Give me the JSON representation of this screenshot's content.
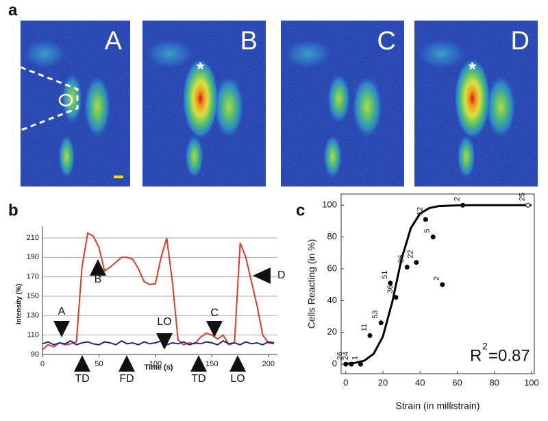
{
  "figure_a": {
    "panel_label": "a",
    "frames": [
      "A",
      "B",
      "C",
      "D"
    ],
    "marker": "*"
  },
  "chart_data": [
    {
      "type": "line",
      "panel_label": "b",
      "ylabel": "Intensity (%)",
      "xlabel": "Time (s)",
      "x": [
        0,
        5,
        10,
        15,
        20,
        25,
        30,
        35,
        40,
        45,
        50,
        55,
        60,
        65,
        70,
        75,
        80,
        85,
        90,
        95,
        100,
        105,
        110,
        115,
        120,
        125,
        130,
        135,
        140,
        145,
        150,
        155,
        160,
        165,
        170,
        175,
        180,
        185,
        190,
        195,
        200,
        205
      ],
      "series": [
        {
          "color": "#e23a22",
          "values": [
            95,
            100,
            98,
            102,
            100,
            101,
            103,
            180,
            215,
            212,
            200,
            176,
            180,
            185,
            190,
            190,
            188,
            178,
            165,
            162,
            163,
            190,
            210,
            165,
            105,
            100,
            102,
            101,
            108,
            112,
            110,
            106,
            110,
            100,
            102,
            205,
            190,
            165,
            140,
            110,
            102,
            101
          ]
        },
        {
          "color": "#23238a",
          "values": [
            101,
            103,
            100,
            102,
            101,
            104,
            100,
            102,
            103,
            101,
            100,
            103,
            102,
            100,
            104,
            101,
            102,
            100,
            103,
            101,
            102,
            104,
            100,
            102,
            101,
            103,
            100,
            102,
            101,
            103,
            102,
            100,
            104,
            101,
            102,
            100,
            103,
            101,
            102,
            100,
            103,
            102
          ]
        }
      ],
      "xlim": [
        0,
        208
      ],
      "ylim": [
        90,
        222
      ],
      "xticks": [
        0,
        50,
        100,
        150,
        200
      ],
      "yticks": [
        90,
        110,
        130,
        150,
        170,
        190,
        210
      ],
      "grid": true,
      "annotations": [
        "A",
        "B",
        "C",
        "D",
        "LO",
        "TD",
        "FD",
        "TD",
        "LO"
      ]
    },
    {
      "type": "scatter",
      "panel_label": "c",
      "ylabel": "Cells Reacting (in %)",
      "xlabel": "Strain (in millistrain)",
      "x": [
        0,
        3,
        8,
        13,
        19,
        24,
        27,
        33,
        38,
        43,
        47,
        52,
        63,
        98
      ],
      "values": [
        0,
        0,
        0,
        18,
        26,
        51,
        42,
        61,
        64,
        91,
        80,
        50,
        100,
        100
      ],
      "point_labels": [
        "26",
        "24",
        "1",
        "11",
        "53",
        "51",
        "36",
        "36",
        "22",
        "12",
        "5",
        "2",
        "2",
        "25"
      ],
      "point_style": [
        "filled",
        "filled",
        "filled",
        "filled",
        "filled",
        "filled",
        "filled",
        "filled",
        "filled",
        "filled",
        "filled",
        "filled",
        "filled",
        "open"
      ],
      "fit_x": [
        0,
        5,
        10,
        15,
        20,
        25,
        30,
        35,
        40,
        45,
        50,
        60,
        70,
        80,
        90,
        100
      ],
      "fit_values": [
        0.3,
        0.8,
        2.2,
        6.5,
        17.4,
        39,
        66,
        85.5,
        94.7,
        98.2,
        99.4,
        99.9,
        100,
        100,
        100,
        100
      ],
      "color": "#000000",
      "xlim": [
        -2.5,
        101.5
      ],
      "ylim": [
        -6,
        107
      ],
      "xticks": [
        0,
        20,
        40,
        60,
        80,
        100
      ],
      "yticks": [
        0,
        20,
        40,
        60,
        80,
        100
      ],
      "annotation": {
        "base": "R",
        "sup": "2",
        "rest": "=0.87"
      }
    }
  ]
}
